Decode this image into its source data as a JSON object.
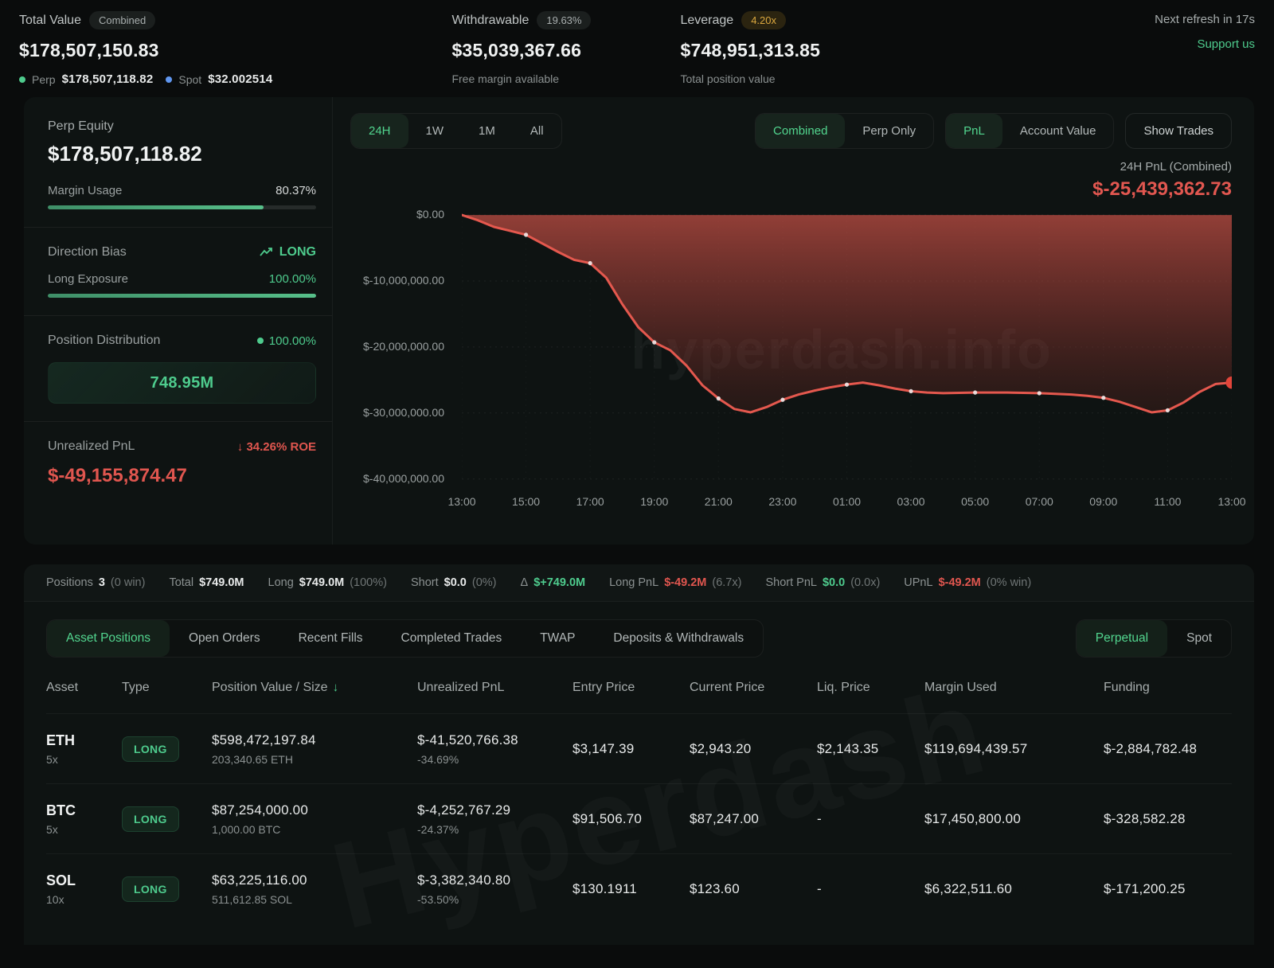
{
  "header": {
    "total_value": {
      "label": "Total Value",
      "badge": "Combined",
      "value": "$178,507,150.83",
      "perp_label": "Perp",
      "perp_value": "$178,507,118.82",
      "spot_label": "Spot",
      "spot_value": "$32.002514"
    },
    "withdrawable": {
      "label": "Withdrawable",
      "badge": "19.63%",
      "value": "$35,039,367.66",
      "sub": "Free margin available"
    },
    "leverage": {
      "label": "Leverage",
      "badge": "4.20x",
      "value": "$748,951,313.85",
      "sub": "Total position value"
    },
    "refresh": "Next refresh in 17s",
    "support": "Support us"
  },
  "stats": {
    "perp_equity_label": "Perp Equity",
    "perp_equity": "$178,507,118.82",
    "margin_usage_label": "Margin Usage",
    "margin_usage": "80.37%",
    "margin_usage_pct": 80.37,
    "direction_bias_label": "Direction Bias",
    "direction_bias": "LONG",
    "long_exposure_label": "Long Exposure",
    "long_exposure": "100.00%",
    "long_exposure_pct": 100,
    "position_distribution_label": "Position Distribution",
    "position_distribution": "100.00%",
    "distribution_box": "748.95M",
    "unrealized_pnl_label": "Unrealized PnL",
    "roe": "34.26% ROE",
    "unrealized_pnl": "$-49,155,874.47"
  },
  "chart_controls": {
    "ranges": [
      "24H",
      "1W",
      "1M",
      "All"
    ],
    "active_range": "24H",
    "mode_toggle": [
      "Combined",
      "Perp Only"
    ],
    "active_mode": "Combined",
    "view_toggle": [
      "PnL",
      "Account Value"
    ],
    "active_view": "PnL",
    "show_trades": "Show Trades",
    "pnl_caption": "24H PnL (Combined)",
    "pnl_value": "$-25,439,362.73"
  },
  "chart_data": {
    "type": "area",
    "title": "24H PnL (Combined)",
    "unit": "USD millions",
    "ylim": [
      -40,
      0
    ],
    "y_ticks": [
      "$0.00",
      "$-10,000,000.00",
      "$-20,000,000.00",
      "$-30,000,000.00",
      "$-40,000,000.00"
    ],
    "x_tick_labels": [
      "13:00",
      "15:00",
      "17:00",
      "19:00",
      "21:00",
      "23:00",
      "01:00",
      "03:00",
      "05:00",
      "07:00",
      "09:00",
      "11:00",
      "13:00"
    ],
    "x": [
      "13:00",
      "13:30",
      "14:00",
      "14:30",
      "15:00",
      "15:30",
      "16:00",
      "16:30",
      "17:00",
      "17:30",
      "18:00",
      "18:30",
      "19:00",
      "19:30",
      "20:00",
      "20:30",
      "21:00",
      "21:30",
      "22:00",
      "22:30",
      "23:00",
      "23:30",
      "00:00",
      "00:30",
      "01:00",
      "01:30",
      "02:00",
      "02:30",
      "03:00",
      "03:30",
      "04:00",
      "04:30",
      "05:00",
      "05:30",
      "06:00",
      "06:30",
      "07:00",
      "07:30",
      "08:00",
      "08:30",
      "09:00",
      "09:30",
      "10:00",
      "10:30",
      "11:00",
      "11:30",
      "12:00",
      "12:30",
      "13:00"
    ],
    "values_m": [
      0,
      -0.8,
      -1.8,
      -2.4,
      -3.0,
      -4.3,
      -5.6,
      -6.8,
      -7.3,
      -9.5,
      -13.5,
      -17.0,
      -19.3,
      -20.5,
      -22.8,
      -25.8,
      -27.8,
      -29.4,
      -29.9,
      -29.1,
      -28.0,
      -27.2,
      -26.6,
      -26.1,
      -25.7,
      -25.4,
      -25.8,
      -26.3,
      -26.7,
      -26.9,
      -27.0,
      -26.95,
      -26.9,
      -26.9,
      -26.9,
      -26.95,
      -27.0,
      -27.1,
      -27.2,
      -27.4,
      -27.7,
      -28.3,
      -29.1,
      -29.9,
      -29.6,
      -28.4,
      -26.8,
      -25.6,
      -25.4
    ],
    "line_color": "#e4584e",
    "marker_color": "#f0e8e8",
    "end_marker_color": "#e2453a",
    "grid": true,
    "legend_position": "none"
  },
  "watermarks": {
    "chart": "hyperdash.info",
    "table": "Hyperdash"
  },
  "summary": [
    {
      "label": "Positions",
      "value": "3",
      "tone": "t-white",
      "extra": "(0 win)"
    },
    {
      "label": "Total",
      "value": "$749.0M",
      "tone": "t-white",
      "extra": ""
    },
    {
      "label": "Long",
      "value": "$749.0M",
      "tone": "t-white",
      "extra": "(100%)"
    },
    {
      "label": "Short",
      "value": "$0.0",
      "tone": "t-white",
      "extra": "(0%)"
    },
    {
      "label": "Δ",
      "value": "$+749.0M",
      "tone": "t-green",
      "extra": ""
    },
    {
      "label": "Long PnL",
      "value": "$-49.2M",
      "tone": "t-red",
      "extra": "(6.7x)"
    },
    {
      "label": "Short PnL",
      "value": "$0.0",
      "tone": "t-green",
      "extra": "(0.0x)"
    },
    {
      "label": "UPnL",
      "value": "$-49.2M",
      "tone": "t-red",
      "extra": "(0% win)"
    }
  ],
  "tabs": {
    "table_tabs": [
      "Asset Positions",
      "Open Orders",
      "Recent Fills",
      "Completed Trades",
      "TWAP",
      "Deposits & Withdrawals"
    ],
    "active_table_tab": "Asset Positions",
    "market_toggle": [
      "Perpetual",
      "Spot"
    ],
    "active_market": "Perpetual"
  },
  "table": {
    "headers": [
      "Asset",
      "Type",
      "Position Value / Size",
      "Unrealized PnL",
      "Entry Price",
      "Current Price",
      "Liq. Price",
      "Margin Used",
      "Funding"
    ],
    "sorted_by": "Position Value / Size",
    "rows": [
      {
        "asset": "ETH",
        "lev": "5x",
        "type": "LONG",
        "value": "$598,472,197.84",
        "size": "203,340.65 ETH",
        "upnl": "$-41,520,766.38",
        "upnl_pct": "-34.69%",
        "entry": "$3,147.39",
        "current": "$2,943.20",
        "liq": "$2,143.35",
        "margin": "$119,694,439.57",
        "funding": "$-2,884,782.48"
      },
      {
        "asset": "BTC",
        "lev": "5x",
        "type": "LONG",
        "value": "$87,254,000.00",
        "size": "1,000.00 BTC",
        "upnl": "$-4,252,767.29",
        "upnl_pct": "-24.37%",
        "entry": "$91,506.70",
        "current": "$87,247.00",
        "liq": "-",
        "margin": "$17,450,800.00",
        "funding": "$-328,582.28"
      },
      {
        "asset": "SOL",
        "lev": "10x",
        "type": "LONG",
        "value": "$63,225,116.00",
        "size": "511,612.85 SOL",
        "upnl": "$-3,382,340.80",
        "upnl_pct": "-53.50%",
        "entry": "$130.1911",
        "current": "$123.60",
        "liq": "-",
        "margin": "$6,322,511.60",
        "funding": "$-171,200.25"
      }
    ]
  }
}
